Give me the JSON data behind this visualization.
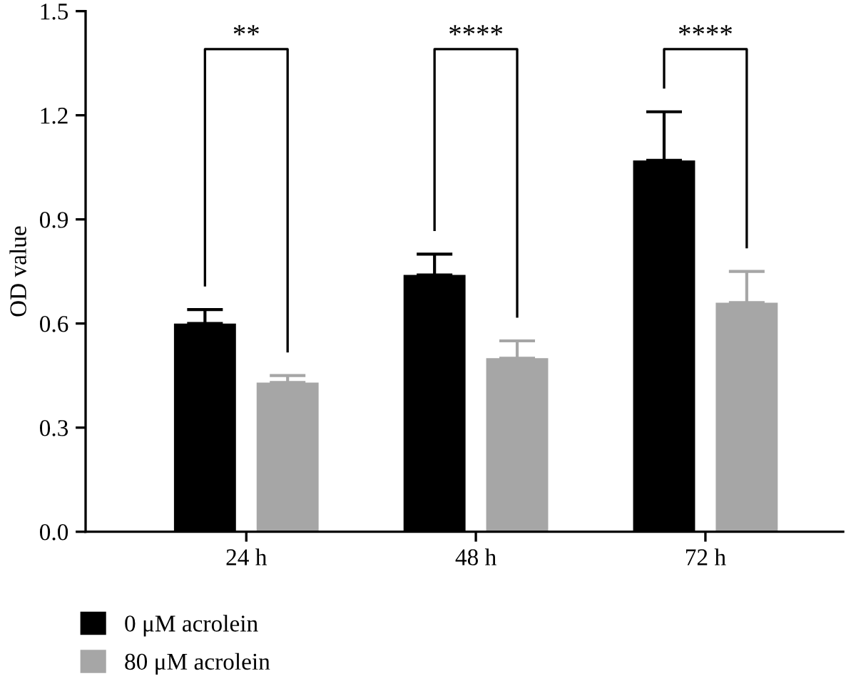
{
  "chart_data": {
    "type": "bar",
    "ylabel": "OD value",
    "categories": [
      "24 h",
      "48 h",
      "72 h"
    ],
    "series": [
      {
        "name": "0 μM acrolein",
        "color": "#000000",
        "values": [
          0.6,
          0.74,
          1.07
        ],
        "errors": [
          [
            0.6,
            0.64
          ],
          [
            0.74,
            0.8
          ],
          [
            1.07,
            1.21
          ]
        ]
      },
      {
        "name": "80 μM acrolein",
        "color": "#a6a6a6",
        "values": [
          0.43,
          0.5,
          0.66
        ],
        "errors": [
          [
            0.43,
            0.45
          ],
          [
            0.5,
            0.55
          ],
          [
            0.66,
            0.75
          ]
        ]
      }
    ],
    "ylim": [
      0,
      1.5
    ],
    "yticks": [
      {
        "value": 0,
        "label": "0.0"
      },
      {
        "value": 0.3,
        "label": "0.3"
      },
      {
        "value": 0.6,
        "label": "0.6"
      },
      {
        "value": 0.9,
        "label": "0.9"
      },
      {
        "value": 1.2,
        "label": "1.2"
      },
      {
        "value": 1.5,
        "label": "1.5"
      }
    ],
    "annotations": [
      "**",
      "****",
      "****"
    ],
    "legend": "bottom left",
    "grid": false
  }
}
